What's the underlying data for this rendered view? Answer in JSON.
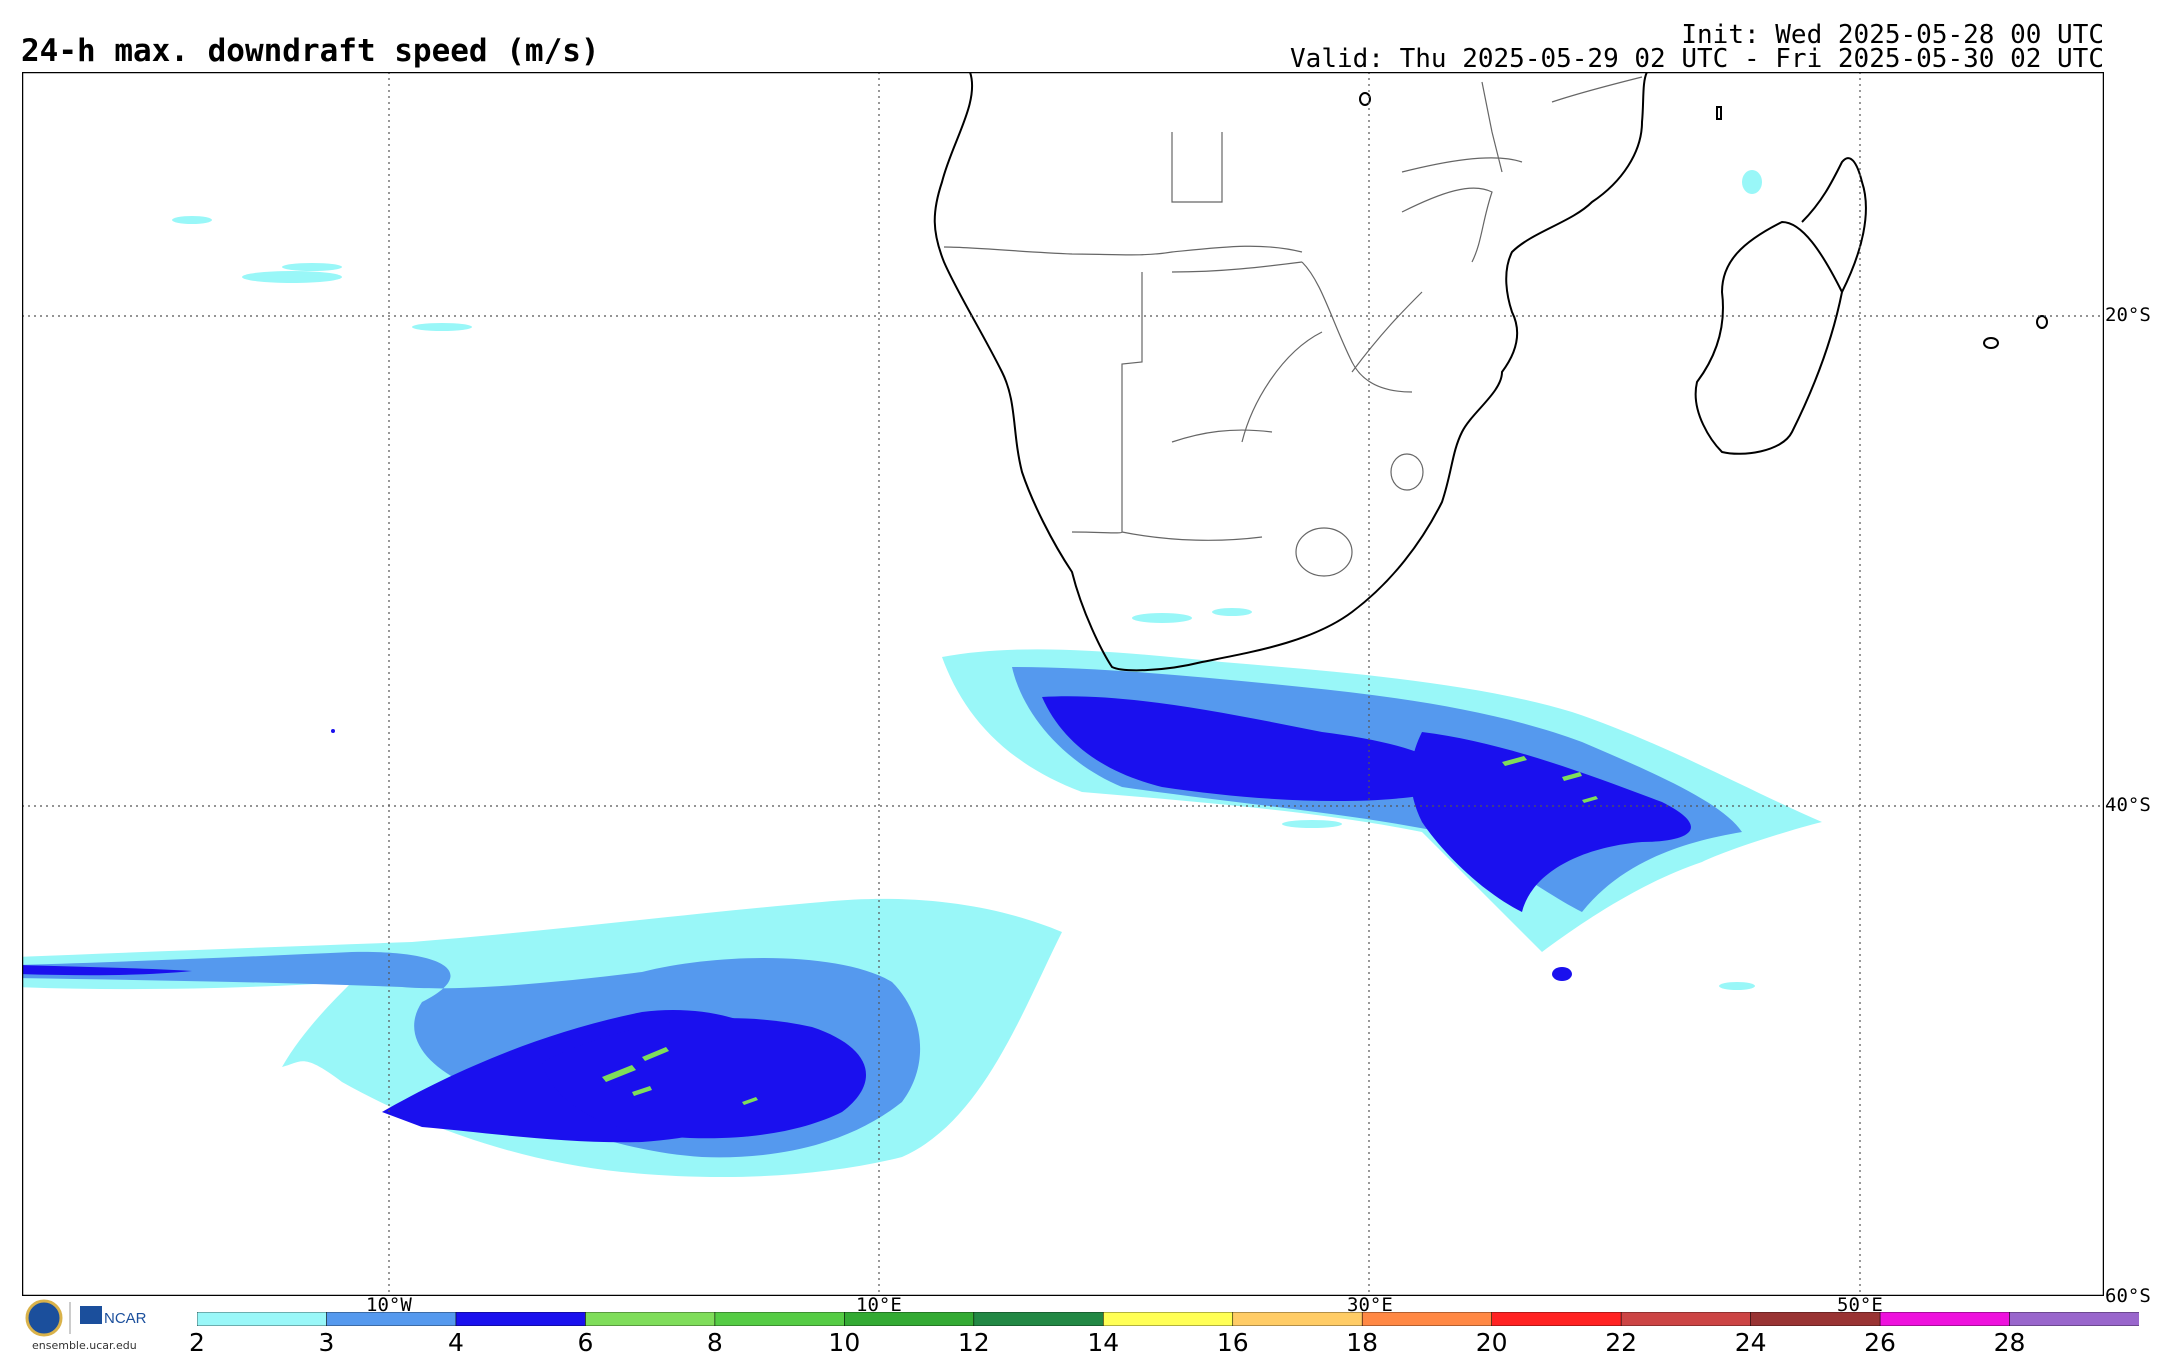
{
  "header": {
    "title": "24-h max. downdraft speed (m/s)",
    "init": "Init: Wed 2025-05-28 00 UTC",
    "valid": "Valid: Thu 2025-05-29 02 UTC - Fri 2025-05-30 02 UTC"
  },
  "map": {
    "lat_labels": [
      "20°S",
      "40°S",
      "60°S"
    ],
    "lon_labels": [
      "10°W",
      "10°E",
      "30°E",
      "50°E"
    ]
  },
  "colorbar": {
    "ticks": [
      "2",
      "3",
      "4",
      "6",
      "8",
      "10",
      "12",
      "14",
      "16",
      "18",
      "20",
      "22",
      "24",
      "26",
      "28"
    ],
    "colors": [
      "#99f7f8",
      "#5599ee",
      "#1a10ee",
      "#7fdd5a",
      "#55cc44",
      "#33aa33",
      "#228844",
      "#ffff55",
      "#ffcc66",
      "#ff8844",
      "#ff2222",
      "#cc4444",
      "#993333",
      "#ee11dd",
      "#9966cc"
    ]
  },
  "logo": {
    "org": "NCAR",
    "site": "ensemble.ucar.edu"
  }
}
